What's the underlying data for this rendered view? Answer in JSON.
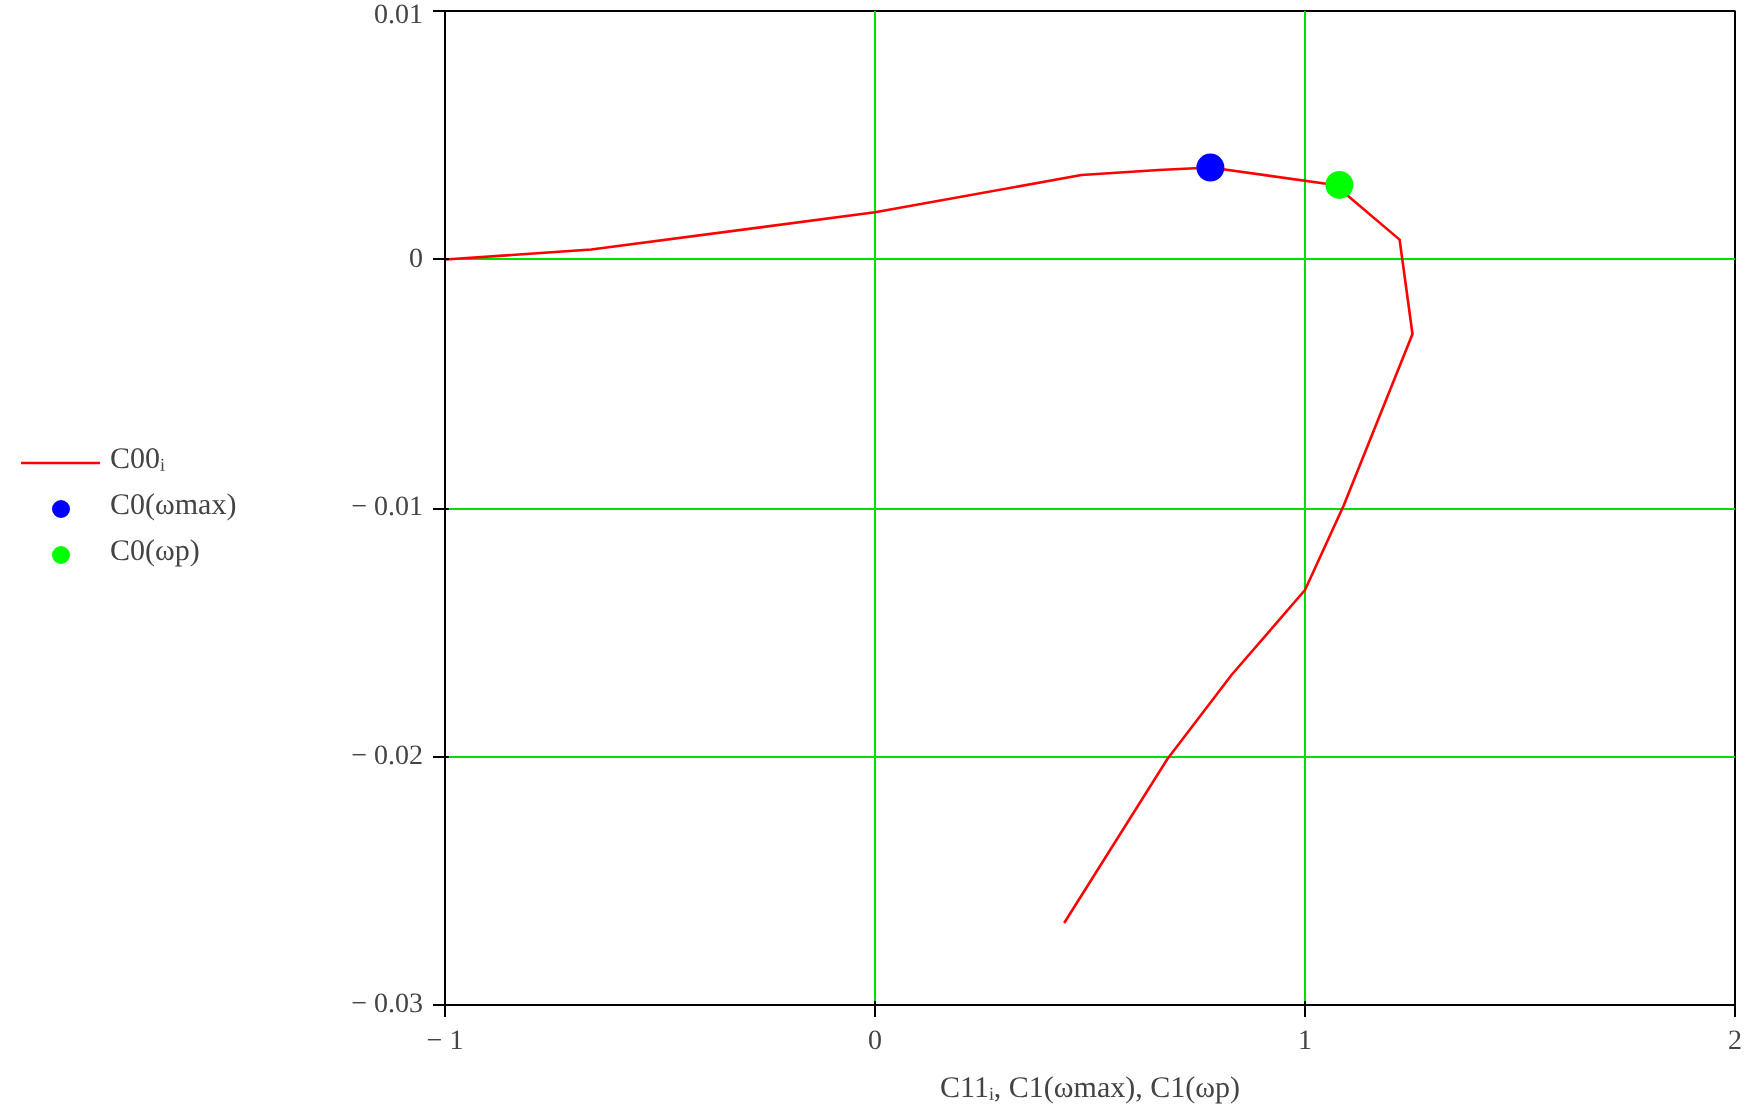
{
  "chart_data": {
    "type": "line",
    "xlabel": "C11ᵢ, C1(ωmax), C1(ωp)",
    "xlim": [
      -1,
      2
    ],
    "ylim": [
      -0.03,
      0.01
    ],
    "xticks": [
      {
        "value": -1,
        "label": "− 1"
      },
      0,
      1,
      2
    ],
    "yticks": [
      {
        "value": -0.03,
        "label": "− 0.03"
      },
      {
        "value": -0.02,
        "label": "− 0.02"
      },
      {
        "value": -0.01,
        "label": "− 0.01"
      },
      0,
      0.01
    ],
    "grid": true,
    "legend": "left",
    "series": [
      {
        "name": "C00ᵢ",
        "color": "#ff0000",
        "line_style": "solid",
        "x": [
          -1,
          -0.66,
          0,
          0.48,
          0.66,
          0.78,
          1.07,
          1.22,
          1.25,
          1.09,
          1.0,
          0.83,
          0.68,
          0.44
        ],
        "values": [
          0,
          0.0004,
          0.0019,
          0.0034,
          0.0036,
          0.0037,
          0.003,
          0.0008,
          -0.003,
          -0.0099,
          -0.0133,
          -0.0167,
          -0.0201,
          -0.0267
        ]
      },
      {
        "name": "C0(ωmax)",
        "type": "scatter",
        "color": "#0000ff",
        "x": [
          0.78
        ],
        "values": [
          0.0037
        ]
      },
      {
        "name": "C0(ωp)",
        "type": "scatter",
        "color": "#00ff00",
        "x": [
          1.08
        ],
        "values": [
          0.003
        ]
      }
    ]
  }
}
